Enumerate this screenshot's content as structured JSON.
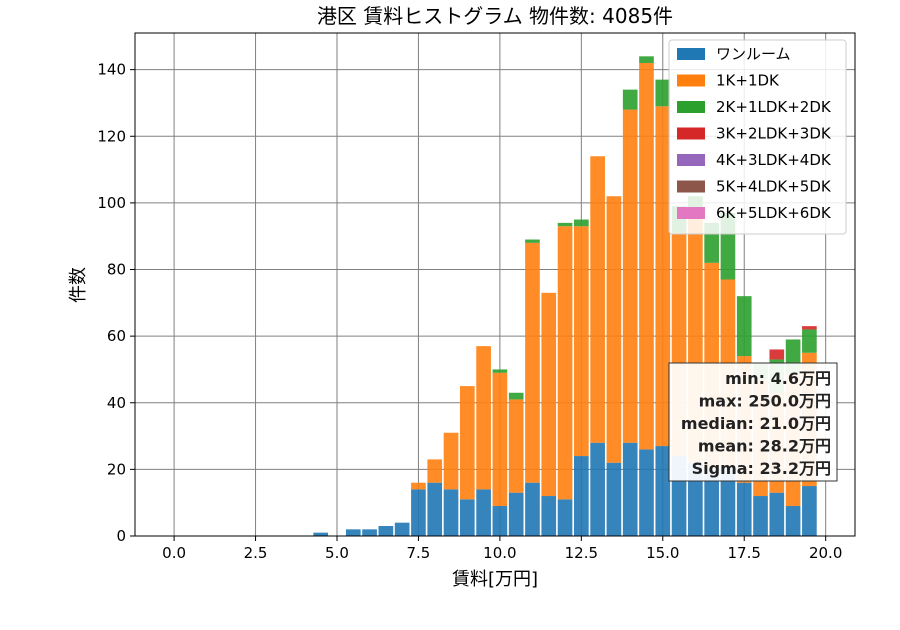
{
  "chart_data": {
    "type": "bar",
    "stacked": true,
    "title": "港区 賃料ヒストグラム  物件数: 4085件",
    "xlabel": "賃料[万円]",
    "ylabel": "件数",
    "xlim": [
      -1.2,
      20.9
    ],
    "ylim": [
      0,
      151
    ],
    "xticks": [
      "0.0",
      "2.5",
      "5.0",
      "7.5",
      "10.0",
      "12.5",
      "15.0",
      "17.5",
      "20.0"
    ],
    "xtick_values": [
      0,
      2.5,
      5,
      7.5,
      10,
      12.5,
      15,
      17.5,
      20
    ],
    "yticks": [
      "0",
      "20",
      "40",
      "60",
      "80",
      "100",
      "120",
      "140"
    ],
    "ytick_values": [
      0,
      20,
      40,
      60,
      80,
      100,
      120,
      140
    ],
    "grid": true,
    "legend_position": "top-right",
    "bin_width": 0.5,
    "bar_width": 0.45,
    "x": [
      4.5,
      5,
      5.5,
      6,
      6.5,
      7,
      7.5,
      8,
      8.5,
      9,
      9.5,
      10,
      10.5,
      11,
      11.5,
      12,
      12.5,
      13,
      13.5,
      14,
      14.5,
      15,
      15.5,
      16,
      16.5,
      17,
      17.5,
      18,
      18.5,
      19,
      19.5
    ],
    "series": [
      {
        "name": "ワンルーム",
        "color": "#1f77b4",
        "values": [
          1,
          0,
          2,
          2,
          3,
          4,
          14,
          16,
          14,
          11,
          14,
          9,
          13,
          16,
          12,
          11,
          24,
          28,
          22,
          28,
          26,
          27,
          24,
          22,
          20,
          21,
          16,
          12,
          13,
          9,
          15
        ]
      },
      {
        "name": "1K+1DK",
        "color": "#ff7f0e",
        "values": [
          0,
          0,
          0,
          0,
          0,
          0,
          2,
          7,
          17,
          34,
          43,
          40,
          28,
          72,
          61,
          82,
          69,
          86,
          80,
          100,
          116,
          102,
          67,
          74,
          62,
          56,
          38,
          35,
          30,
          40,
          40
        ]
      },
      {
        "name": "2K+1LDK+2DK",
        "color": "#2ca02c",
        "values": [
          0,
          0,
          0,
          0,
          0,
          0,
          0,
          0,
          0,
          0,
          0,
          1,
          2,
          1,
          0,
          1,
          2,
          0,
          0,
          6,
          2,
          8,
          8,
          6,
          12,
          20,
          18,
          5,
          10,
          10,
          7
        ]
      },
      {
        "name": "3K+2LDK+3DK",
        "color": "#d62728",
        "values": [
          0,
          0,
          0,
          0,
          0,
          0,
          0,
          0,
          0,
          0,
          0,
          0,
          0,
          0,
          0,
          0,
          0,
          0,
          0,
          0,
          0,
          0,
          0,
          0,
          0,
          0,
          0,
          0,
          3,
          0,
          1
        ]
      },
      {
        "name": "4K+3LDK+4DK",
        "color": "#9467bd",
        "values": [
          0,
          0,
          0,
          0,
          0,
          0,
          0,
          0,
          0,
          0,
          0,
          0,
          0,
          0,
          0,
          0,
          0,
          0,
          0,
          0,
          0,
          0,
          0,
          0,
          0,
          0,
          0,
          0,
          0,
          0,
          0
        ]
      },
      {
        "name": "5K+4LDK+5DK",
        "color": "#8c564b",
        "values": [
          0,
          0,
          0,
          0,
          0,
          0,
          0,
          0,
          0,
          0,
          0,
          0,
          0,
          0,
          0,
          0,
          0,
          0,
          0,
          0,
          0,
          0,
          0,
          0,
          0,
          0,
          0,
          0,
          0,
          0,
          0
        ]
      },
      {
        "name": "6K+5LDK+6DK",
        "color": "#e377c2",
        "values": [
          0,
          0,
          0,
          0,
          0,
          0,
          0,
          0,
          0,
          0,
          0,
          0,
          0,
          0,
          0,
          0,
          0,
          0,
          0,
          0,
          0,
          0,
          0,
          0,
          0,
          0,
          0,
          0,
          0,
          0,
          0
        ]
      }
    ],
    "stats": [
      "min: 4.6万円",
      "max: 250.0万円",
      "median: 21.0万円",
      "mean: 28.2万円",
      "Sigma: 23.2万円"
    ]
  }
}
